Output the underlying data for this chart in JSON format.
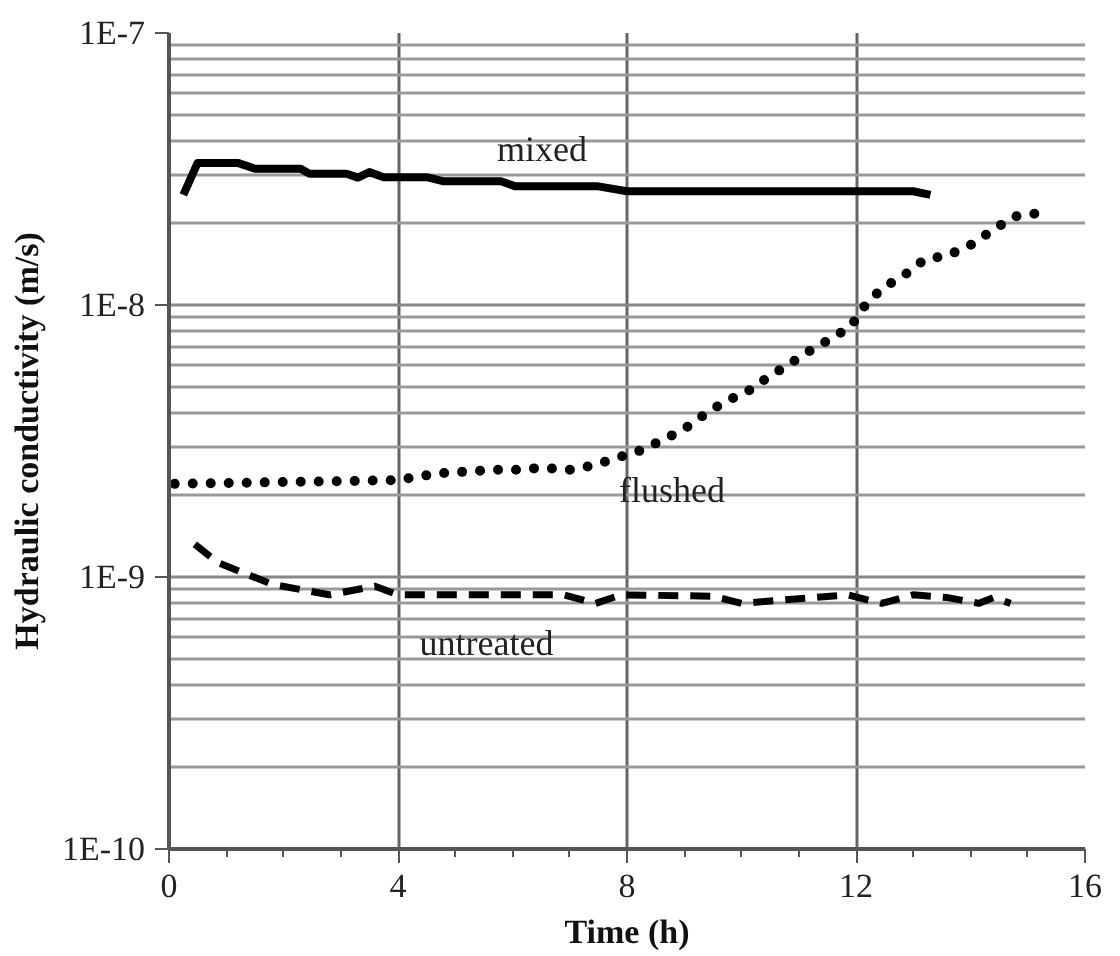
{
  "chart_data": {
    "type": "line",
    "xlabel": "Time (h)",
    "ylabel": "Hydraulic conductivity (m/s)",
    "log": "y",
    "xlim": [
      0,
      16
    ],
    "xticks": [
      0,
      4,
      8,
      12,
      16
    ],
    "ylim": [
      1e-10,
      1e-07
    ],
    "yticks": [
      {
        "value": 1e-10,
        "label": "1E-10"
      },
      {
        "value": 1e-09,
        "label": "1E-9"
      },
      {
        "value": 1e-08,
        "label": "1E-8"
      },
      {
        "value": 1e-07,
        "label": "1E-7"
      }
    ],
    "grid": true,
    "legend": false,
    "marker": "none",
    "series": [
      {
        "name": "mixed",
        "color": "#000000",
        "line_style": "solid",
        "x": [
          0.25,
          0.5,
          1.2,
          1.5,
          2.3,
          2.45,
          3.1,
          3.3,
          3.5,
          3.75,
          4.5,
          4.8,
          5.8,
          6.05,
          7.5,
          8.0,
          13.0,
          13.3
        ],
        "values": [
          2.54e-08,
          3.33e-08,
          3.33e-08,
          3.17e-08,
          3.17e-08,
          3.04e-08,
          3.04e-08,
          2.94e-08,
          3.08e-08,
          2.95e-08,
          2.95e-08,
          2.85e-08,
          2.85e-08,
          2.73e-08,
          2.73e-08,
          2.62e-08,
          2.62e-08,
          2.54e-08
        ]
      },
      {
        "name": "flushed",
        "color": "#000000",
        "line_style": "dotted",
        "x": [
          0.1,
          4.0,
          4.4,
          4.8,
          5.3,
          5.7,
          6.1,
          6.5,
          7.0,
          7.4,
          7.8,
          8.2,
          8.6,
          9.0,
          9.35,
          9.7,
          10.1,
          10.45,
          10.8,
          11.15,
          11.55,
          11.9,
          12.15,
          12.45,
          12.85,
          13.2,
          13.6,
          14.0,
          14.4,
          14.75,
          15.2
        ],
        "values": [
          2.2e-09,
          2.27e-09,
          2.35e-09,
          2.41e-09,
          2.45e-09,
          2.48e-09,
          2.48e-09,
          2.52e-09,
          2.48e-09,
          2.57e-09,
          2.73e-09,
          2.9e-09,
          3.17e-09,
          3.5e-09,
          3.95e-09,
          4.4e-09,
          4.8e-09,
          5.4e-09,
          6e-09,
          6.7e-09,
          7.5e-09,
          8.3e-09,
          9.9e-09,
          1.15e-08,
          1.29e-08,
          1.47e-08,
          1.52e-08,
          1.66e-08,
          1.89e-08,
          2.11e-08,
          2.18e-08
        ]
      },
      {
        "name": "untreated",
        "color": "#000000",
        "line_style": "dashed",
        "x": [
          0.45,
          0.85,
          1.8,
          2.8,
          3.6,
          4.0,
          6.9,
          7.45,
          7.9,
          9.5,
          10.0,
          11.85,
          12.45,
          13.0,
          13.6,
          14.15,
          14.4,
          14.7
        ],
        "values": [
          1.32e-09,
          1.13e-09,
          9.4e-10,
          8.6e-10,
          9.25e-10,
          8.6e-10,
          8.6e-10,
          8e-10,
          8.6e-10,
          8.5e-10,
          8e-10,
          8.6e-10,
          8e-10,
          8.6e-10,
          8.4e-10,
          8e-10,
          8.4e-10,
          8e-10
        ]
      }
    ]
  }
}
